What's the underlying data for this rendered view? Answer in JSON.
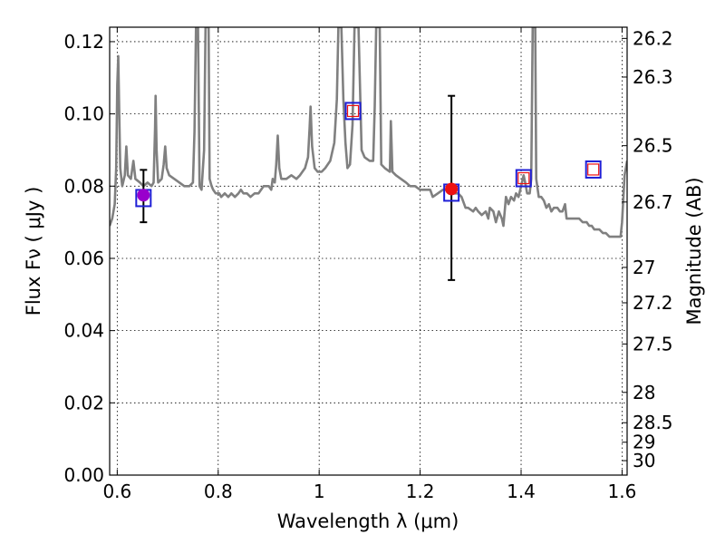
{
  "chart_data": {
    "type": "line",
    "xlabel": "Wavelength  λ (μm)",
    "ylabel": "Flux  Fν  ( μJy )",
    "ylabel_right": "Magnitude (AB)",
    "xlim": [
      0.585,
      1.61
    ],
    "ylim": [
      0.0,
      0.124
    ],
    "grid": true,
    "x_ticks": [
      {
        "value": 0.6,
        "label": "0.6"
      },
      {
        "value": 0.8,
        "label": "0.8"
      },
      {
        "value": 1.0,
        "label": "1"
      },
      {
        "value": 1.2,
        "label": "1.2"
      },
      {
        "value": 1.4,
        "label": "1.4"
      },
      {
        "value": 1.6,
        "label": "1.6"
      }
    ],
    "y_ticks": [
      {
        "value": 0.0,
        "label": "0.00"
      },
      {
        "value": 0.02,
        "label": "0.02"
      },
      {
        "value": 0.04,
        "label": "0.04"
      },
      {
        "value": 0.06,
        "label": "0.06"
      },
      {
        "value": 0.08,
        "label": "0.08"
      },
      {
        "value": 0.1,
        "label": "0.10"
      },
      {
        "value": 0.12,
        "label": "0.12"
      }
    ],
    "right_ticks": [
      {
        "flux": 0.1209,
        "label": "26.2"
      },
      {
        "flux": 0.1102,
        "label": "26.3"
      },
      {
        "flux": 0.0912,
        "label": "26.5"
      },
      {
        "flux": 0.0756,
        "label": "26.7"
      },
      {
        "flux": 0.0575,
        "label": "27"
      },
      {
        "flux": 0.0477,
        "label": "27.2"
      },
      {
        "flux": 0.0363,
        "label": "27.5"
      },
      {
        "flux": 0.0229,
        "label": "28"
      },
      {
        "flux": 0.0145,
        "label": "28.5"
      },
      {
        "flux": 0.0091,
        "label": "29"
      },
      {
        "flux": 0.004,
        "label": "30"
      }
    ],
    "series": [
      {
        "color": "#808080",
        "points": [
          [
            0.585,
            0.069
          ],
          [
            0.59,
            0.071
          ],
          [
            0.595,
            0.075
          ],
          [
            0.598,
            0.085
          ],
          [
            0.6,
            0.108
          ],
          [
            0.602,
            0.116
          ],
          [
            0.604,
            0.1
          ],
          [
            0.606,
            0.085
          ],
          [
            0.61,
            0.08
          ],
          [
            0.615,
            0.083
          ],
          [
            0.618,
            0.091
          ],
          [
            0.621,
            0.083
          ],
          [
            0.627,
            0.082
          ],
          [
            0.632,
            0.087
          ],
          [
            0.636,
            0.082
          ],
          [
            0.645,
            0.081
          ],
          [
            0.652,
            0.08
          ],
          [
            0.66,
            0.081
          ],
          [
            0.668,
            0.08
          ],
          [
            0.672,
            0.081
          ],
          [
            0.675,
            0.096
          ],
          [
            0.676,
            0.105
          ],
          [
            0.678,
            0.09
          ],
          [
            0.681,
            0.081
          ],
          [
            0.688,
            0.082
          ],
          [
            0.692,
            0.086
          ],
          [
            0.695,
            0.091
          ],
          [
            0.698,
            0.085
          ],
          [
            0.703,
            0.083
          ],
          [
            0.713,
            0.082
          ],
          [
            0.723,
            0.081
          ],
          [
            0.733,
            0.08
          ],
          [
            0.743,
            0.08
          ],
          [
            0.75,
            0.081
          ],
          [
            0.753,
            0.095
          ],
          [
            0.756,
            0.124
          ],
          [
            0.76,
            0.124
          ],
          [
            0.763,
            0.08
          ],
          [
            0.767,
            0.079
          ],
          [
            0.772,
            0.09
          ],
          [
            0.775,
            0.124
          ],
          [
            0.781,
            0.124
          ],
          [
            0.783,
            0.082
          ],
          [
            0.787,
            0.08
          ],
          [
            0.79,
            0.079
          ],
          [
            0.795,
            0.078
          ],
          [
            0.802,
            0.078
          ],
          [
            0.806,
            0.077
          ],
          [
            0.813,
            0.078
          ],
          [
            0.82,
            0.077
          ],
          [
            0.826,
            0.078
          ],
          [
            0.833,
            0.077
          ],
          [
            0.84,
            0.078
          ],
          [
            0.845,
            0.079
          ],
          [
            0.85,
            0.078
          ],
          [
            0.857,
            0.078
          ],
          [
            0.864,
            0.077
          ],
          [
            0.872,
            0.078
          ],
          [
            0.88,
            0.078
          ],
          [
            0.89,
            0.08
          ],
          [
            0.9,
            0.08
          ],
          [
            0.905,
            0.079
          ],
          [
            0.908,
            0.082
          ],
          [
            0.912,
            0.081
          ],
          [
            0.915,
            0.086
          ],
          [
            0.918,
            0.094
          ],
          [
            0.921,
            0.085
          ],
          [
            0.925,
            0.082
          ],
          [
            0.935,
            0.082
          ],
          [
            0.945,
            0.083
          ],
          [
            0.955,
            0.082
          ],
          [
            0.962,
            0.083
          ],
          [
            0.972,
            0.085
          ],
          [
            0.978,
            0.088
          ],
          [
            0.981,
            0.096
          ],
          [
            0.983,
            0.102
          ],
          [
            0.986,
            0.091
          ],
          [
            0.991,
            0.085
          ],
          [
            0.997,
            0.084
          ],
          [
            1.005,
            0.084
          ],
          [
            1.012,
            0.085
          ],
          [
            1.022,
            0.087
          ],
          [
            1.03,
            0.092
          ],
          [
            1.035,
            0.104
          ],
          [
            1.038,
            0.124
          ],
          [
            1.044,
            0.124
          ],
          [
            1.048,
            0.104
          ],
          [
            1.052,
            0.092
          ],
          [
            1.056,
            0.085
          ],
          [
            1.061,
            0.086
          ],
          [
            1.066,
            0.097
          ],
          [
            1.07,
            0.124
          ],
          [
            1.078,
            0.124
          ],
          [
            1.084,
            0.09
          ],
          [
            1.09,
            0.088
          ],
          [
            1.1,
            0.087
          ],
          [
            1.107,
            0.087
          ],
          [
            1.11,
            0.102
          ],
          [
            1.113,
            0.124
          ],
          [
            1.12,
            0.124
          ],
          [
            1.123,
            0.086
          ],
          [
            1.13,
            0.085
          ],
          [
            1.14,
            0.084
          ],
          [
            1.142,
            0.098
          ],
          [
            1.145,
            0.084
          ],
          [
            1.152,
            0.083
          ],
          [
            1.162,
            0.082
          ],
          [
            1.172,
            0.081
          ],
          [
            1.18,
            0.08
          ],
          [
            1.19,
            0.08
          ],
          [
            1.2,
            0.079
          ],
          [
            1.21,
            0.079
          ],
          [
            1.22,
            0.079
          ],
          [
            1.225,
            0.077
          ],
          [
            1.235,
            0.078
          ],
          [
            1.245,
            0.079
          ],
          [
            1.255,
            0.079
          ],
          [
            1.265,
            0.078
          ],
          [
            1.275,
            0.078
          ],
          [
            1.282,
            0.077
          ],
          [
            1.29,
            0.074
          ],
          [
            1.295,
            0.074
          ],
          [
            1.305,
            0.073
          ],
          [
            1.31,
            0.074
          ],
          [
            1.315,
            0.073
          ],
          [
            1.322,
            0.072
          ],
          [
            1.33,
            0.073
          ],
          [
            1.335,
            0.071
          ],
          [
            1.338,
            0.074
          ],
          [
            1.345,
            0.073
          ],
          [
            1.35,
            0.07
          ],
          [
            1.356,
            0.073
          ],
          [
            1.362,
            0.071
          ],
          [
            1.365,
            0.069
          ],
          [
            1.37,
            0.077
          ],
          [
            1.375,
            0.075
          ],
          [
            1.38,
            0.077
          ],
          [
            1.386,
            0.076
          ],
          [
            1.39,
            0.078
          ],
          [
            1.395,
            0.077
          ],
          [
            1.4,
            0.08
          ],
          [
            1.405,
            0.083
          ],
          [
            1.408,
            0.081
          ],
          [
            1.412,
            0.078
          ],
          [
            1.417,
            0.078
          ],
          [
            1.42,
            0.082
          ],
          [
            1.423,
            0.124
          ],
          [
            1.428,
            0.124
          ],
          [
            1.43,
            0.082
          ],
          [
            1.435,
            0.077
          ],
          [
            1.44,
            0.077
          ],
          [
            1.445,
            0.076
          ],
          [
            1.45,
            0.074
          ],
          [
            1.455,
            0.075
          ],
          [
            1.46,
            0.073
          ],
          [
            1.465,
            0.074
          ],
          [
            1.472,
            0.074
          ],
          [
            1.477,
            0.073
          ],
          [
            1.482,
            0.073
          ],
          [
            1.487,
            0.075
          ],
          [
            1.49,
            0.071
          ],
          [
            1.495,
            0.071
          ],
          [
            1.505,
            0.071
          ],
          [
            1.515,
            0.071
          ],
          [
            1.522,
            0.07
          ],
          [
            1.53,
            0.07
          ],
          [
            1.535,
            0.069
          ],
          [
            1.54,
            0.069
          ],
          [
            1.545,
            0.068
          ],
          [
            1.555,
            0.068
          ],
          [
            1.562,
            0.067
          ],
          [
            1.568,
            0.067
          ],
          [
            1.575,
            0.066
          ],
          [
            1.582,
            0.066
          ],
          [
            1.59,
            0.066
          ],
          [
            1.597,
            0.066
          ],
          [
            1.6,
            0.07
          ],
          [
            1.605,
            0.083
          ],
          [
            1.61,
            0.087
          ]
        ]
      }
    ],
    "observed_points": [
      {
        "x": 0.652,
        "y": 0.0775,
        "color": "#9900cc",
        "yerr_low": 0.07,
        "yerr_high": 0.0845
      },
      {
        "x": 1.262,
        "y": 0.0792,
        "color": "#ee1111",
        "yerr_low": 0.054,
        "yerr_high": 0.105
      }
    ],
    "model_squares": [
      {
        "x": 0.652,
        "y": 0.0767
      },
      {
        "x": 1.067,
        "y": 0.1008
      },
      {
        "x": 1.262,
        "y": 0.0782
      },
      {
        "x": 1.405,
        "y": 0.0822
      },
      {
        "x": 1.543,
        "y": 0.0846
      }
    ],
    "model_squares_inner": [
      {
        "x": 1.067,
        "y": 0.1008
      },
      {
        "x": 1.405,
        "y": 0.0822
      },
      {
        "x": 1.543,
        "y": 0.0846
      }
    ],
    "colors": {
      "spectrum": "#808080",
      "square_outer": "#1f1fd6",
      "square_inner": "#ee1111",
      "errorbar": "#000000"
    }
  }
}
